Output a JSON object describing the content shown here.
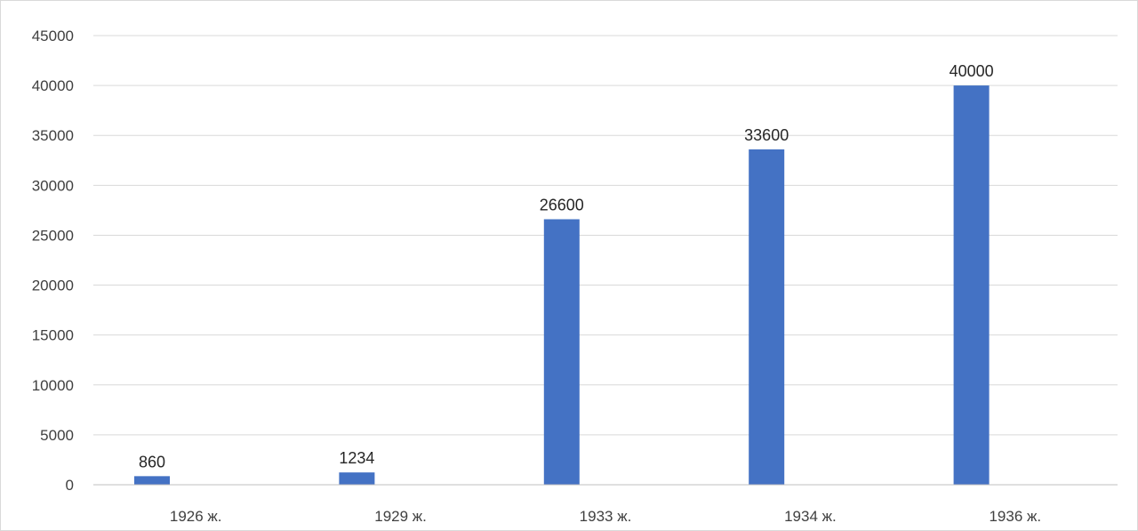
{
  "chart_data": {
    "type": "bar",
    "title": "",
    "xlabel": "",
    "ylabel": "",
    "categories": [
      "1926 ж.",
      "1929 ж.",
      "1933 ж.",
      "1934 ж.",
      "1936 ж."
    ],
    "series": [
      {
        "values": [
          860,
          1234,
          26600,
          33600,
          40000
        ],
        "color": "#4472c4"
      }
    ],
    "data_labels": [
      "860",
      "1234",
      "26600",
      "33600",
      "40000"
    ],
    "ylim": [
      0,
      45000
    ],
    "yticks": [
      0,
      5000,
      10000,
      15000,
      20000,
      25000,
      30000,
      35000,
      40000,
      45000
    ],
    "ytick_labels": [
      "0",
      "5000",
      "10000",
      "15000",
      "20000",
      "25000",
      "30000",
      "35000",
      "40000",
      "45000"
    ],
    "grid": true,
    "legend": "none",
    "gridline_color": "#d9d9d9",
    "axis_color": "#bfbfbf"
  }
}
